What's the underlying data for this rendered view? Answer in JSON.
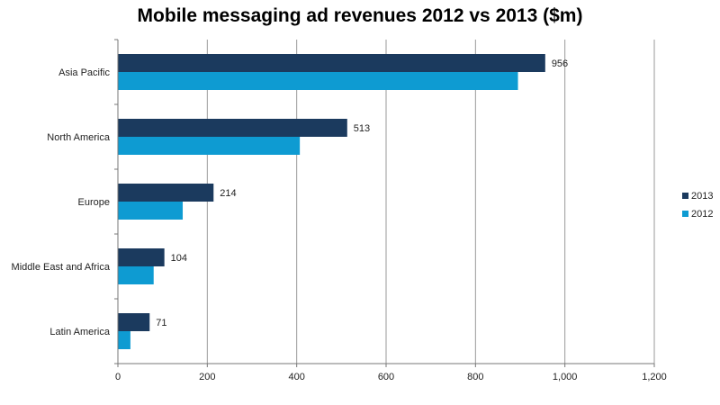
{
  "chart_data": {
    "type": "bar",
    "orientation": "horizontal",
    "title": "Mobile messaging ad revenues 2012 vs 2013 ($m)",
    "xlabel": "",
    "ylabel": "",
    "categories": [
      "Asia Pacific",
      "North America",
      "Europe",
      "Middle East and Africa",
      "Latin America"
    ],
    "series": [
      {
        "name": "2013",
        "values": [
          956,
          513,
          214,
          104,
          71
        ],
        "color": "#1b3a5e",
        "show_labels": true
      },
      {
        "name": "2012",
        "values": [
          895,
          407,
          145,
          80,
          28
        ],
        "color": "#0e9bd2",
        "show_labels": false
      }
    ],
    "xlim": [
      0,
      1200
    ],
    "xticks": [
      0,
      200,
      400,
      600,
      800,
      1000,
      1200
    ],
    "xtick_labels": [
      "0",
      "200",
      "400",
      "600",
      "800",
      "1,000",
      "1,200"
    ],
    "grid": "vertical",
    "legend": "right"
  }
}
